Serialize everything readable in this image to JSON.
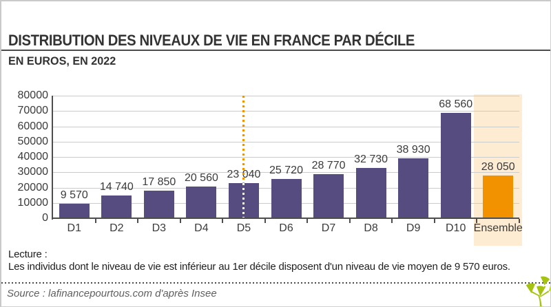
{
  "header": {
    "title": "DISTRIBUTION DES NIVEAUX DE VIE EN FRANCE PAR DÉCILE",
    "subtitle": "EN EUROS, EN 2022"
  },
  "chart_data": {
    "type": "bar",
    "title": "DISTRIBUTION DES NIVEAUX DE VIE EN FRANCE PAR DÉCILE",
    "subtitle": "EN EUROS, EN 2022",
    "categories": [
      "D1",
      "D2",
      "D3",
      "D4",
      "D5",
      "D6",
      "D7",
      "D8",
      "D9",
      "D10",
      "Ensemble"
    ],
    "values": [
      9570,
      14740,
      17850,
      20560,
      23040,
      25720,
      28770,
      32730,
      38930,
      68560,
      28050
    ],
    "value_labels": [
      "9 570",
      "14 740",
      "17 850",
      "20 560",
      "23 040",
      "25 720",
      "28 770",
      "32 730",
      "38 930",
      "68 560",
      "28 050"
    ],
    "xlabel": "",
    "ylabel": "",
    "ylim": [
      0,
      80000
    ],
    "ytick_step": 10000,
    "ytick_labels": [
      "0",
      "10000",
      "20000",
      "30000",
      "40000",
      "50000",
      "60000",
      "70000",
      "80000"
    ],
    "grid": "horizontal",
    "legend": "none",
    "median_dotted_line_at": "D5",
    "highlight_category": "Ensemble",
    "colors": {
      "bar": "#564c7f",
      "highlight_bar": "#f39200",
      "highlight_band": "#fdecd2",
      "median_line": "#f39200",
      "median_line_inside_bar": "#ffffff",
      "gridline": "#cbcbcb",
      "axis": "#4d4d4d",
      "label_text": "#3a3a3a"
    }
  },
  "footer": {
    "lecture_label": "Lecture :",
    "lecture_text": "Les individus dont le niveau de vie est inférieur au 1er décile disposent d'un niveau de vie moyen de 9 570 euros.",
    "source": "Source : lafinancepourtous.com d'après Insee"
  },
  "logo": {
    "name": "lafinancepourtous-tree-logo",
    "color": "#a6c313"
  }
}
